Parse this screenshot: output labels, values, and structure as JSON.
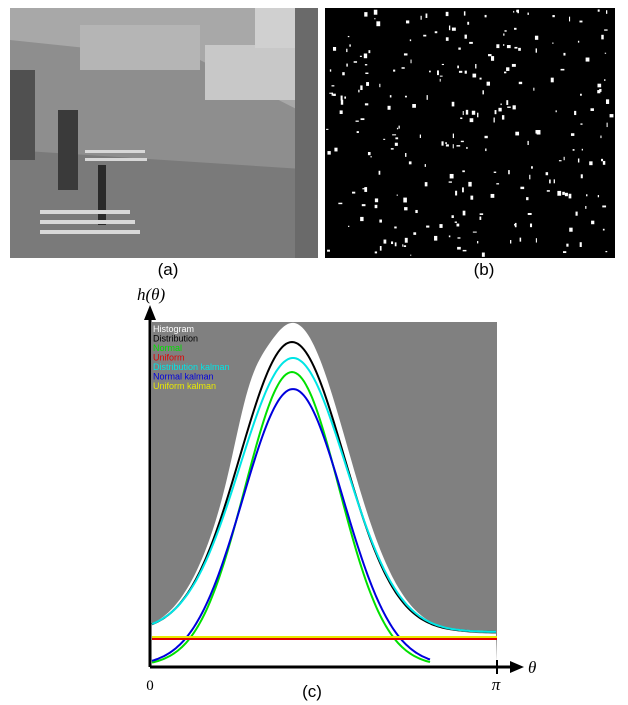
{
  "figure": {
    "panels": [
      {
        "caption": "(a)"
      },
      {
        "caption": "(b)"
      },
      {
        "caption": "(c)"
      }
    ],
    "plot": {
      "y_axis_label": "h(θ)",
      "x_axis_label": "θ",
      "x_start_label": "0",
      "x_end_label": "π",
      "legend": [
        "Histogram",
        "Distribution",
        "Normal",
        "Uniform",
        "Distribution kalman",
        "Normal kalman",
        "Uniform kalman"
      ]
    }
  }
}
